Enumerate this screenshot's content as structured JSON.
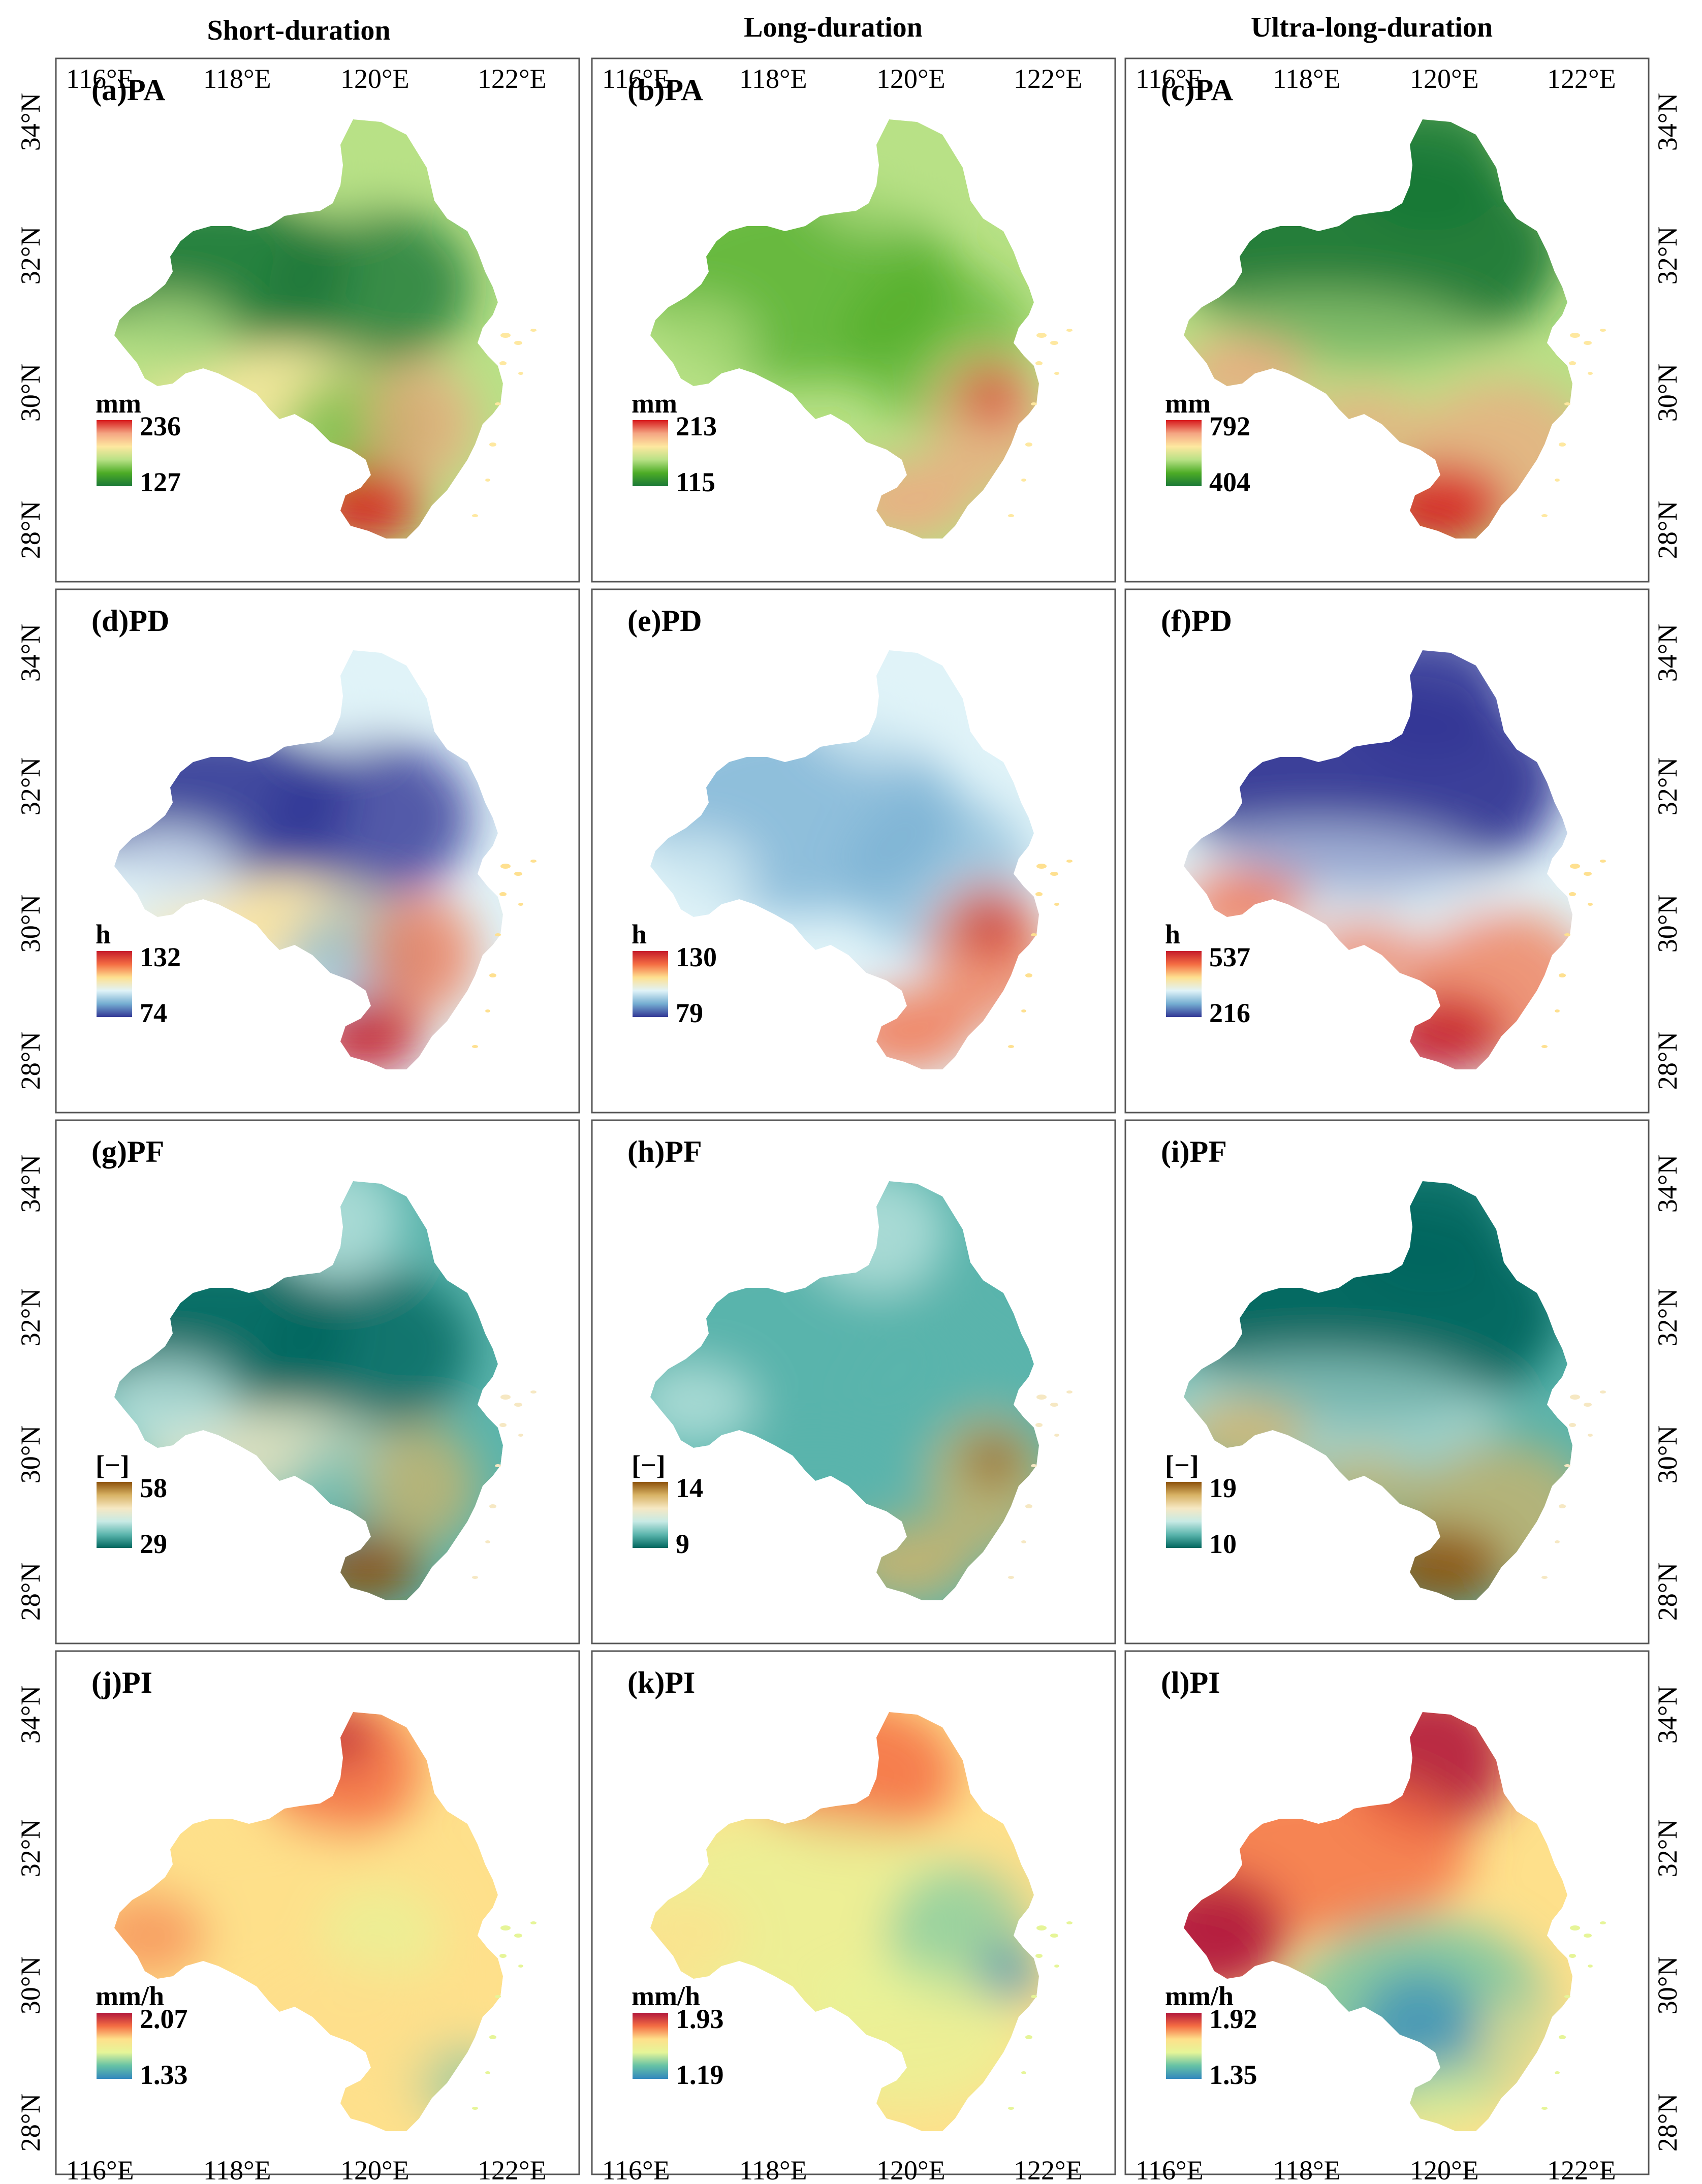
{
  "columns": [
    "Short-duration",
    "Long-duration",
    "Ultra-long-duration"
  ],
  "lon_ticks": [
    "116°E",
    "118°E",
    "120°E",
    "122°E"
  ],
  "lat_ticks": [
    "34°N",
    "32°N",
    "30°N",
    "28°N"
  ],
  "panels": [
    {
      "label": "(a)PA",
      "unit": "mm",
      "max": "236",
      "min": "127",
      "palette": "greens-rd",
      "pattern": "short"
    },
    {
      "label": "(b)PA",
      "unit": "mm",
      "max": "213",
      "min": "115",
      "palette": "greens-rd",
      "pattern": "long"
    },
    {
      "label": "(c)PA",
      "unit": "mm",
      "max": "792",
      "min": "404",
      "palette": "greens-rd",
      "pattern": "ultra"
    },
    {
      "label": "(d)PD",
      "unit": "h",
      "max": "132",
      "min": "74",
      "palette": "rdylbu",
      "pattern": "short"
    },
    {
      "label": "(e)PD",
      "unit": "h",
      "max": "130",
      "min": "79",
      "palette": "rdylbu",
      "pattern": "long"
    },
    {
      "label": "(f)PD",
      "unit": "h",
      "max": "537",
      "min": "216",
      "palette": "rdylbu",
      "pattern": "ultra"
    },
    {
      "label": "(g)PF",
      "unit": "[−]",
      "max": "58",
      "min": "29",
      "palette": "brbg",
      "pattern": "short"
    },
    {
      "label": "(h)PF",
      "unit": "[−]",
      "max": "14",
      "min": "9",
      "palette": "brbg",
      "pattern": "long"
    },
    {
      "label": "(i)PF",
      "unit": "[−]",
      "max": "19",
      "min": "10",
      "palette": "brbg",
      "pattern": "ultra"
    },
    {
      "label": "(j)PI",
      "unit": "mm/h",
      "max": "2.07",
      "min": "1.33",
      "palette": "spectral",
      "pattern": "pi-short"
    },
    {
      "label": "(k)PI",
      "unit": "mm/h",
      "max": "1.93",
      "min": "1.19",
      "palette": "spectral",
      "pattern": "pi-long"
    },
    {
      "label": "(l)PI",
      "unit": "mm/h",
      "max": "1.92",
      "min": "1.35",
      "palette": "spectral",
      "pattern": "pi-ultra"
    }
  ],
  "palettes": {
    "greens-rd": [
      "#d7191c",
      "#f4a582",
      "#fee8a0",
      "#b8e186",
      "#4dac26",
      "#1a7837"
    ],
    "rdylbu": [
      "#c51b2a",
      "#f46d43",
      "#fee090",
      "#e0f3f8",
      "#74add1",
      "#313695"
    ],
    "brbg": [
      "#8c510a",
      "#d8b365",
      "#f6e8c3",
      "#c7eae5",
      "#5ab4ac",
      "#01665e"
    ],
    "spectral": [
      "#b2183b",
      "#f46d43",
      "#fee08b",
      "#e6f598",
      "#66c2a5",
      "#3288bd"
    ]
  }
}
